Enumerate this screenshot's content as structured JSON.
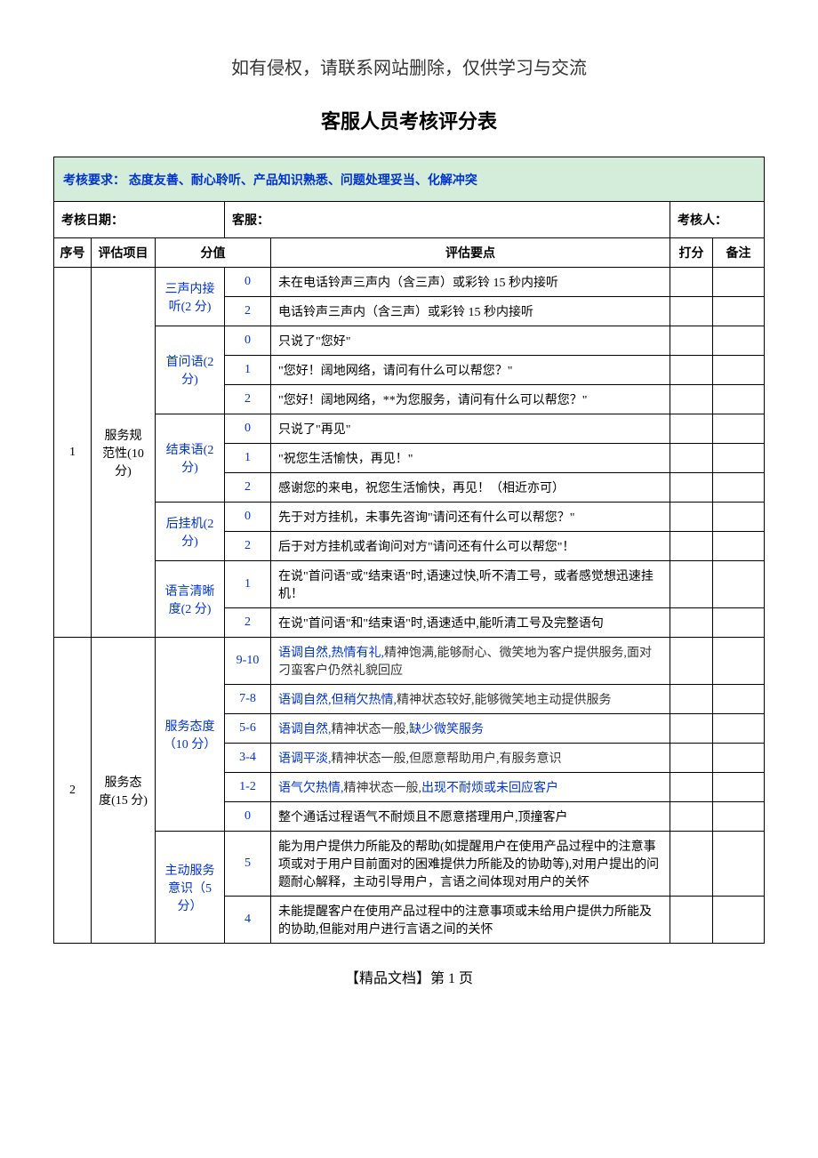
{
  "disclaimer": "如有侵权，请联系网站删除，仅供学习与交流",
  "title": "客服人员考核评分表",
  "requirements": {
    "label": "考核要求：",
    "text": "态度友善、耐心聆听、产品知识熟悉、问题处理妥当、化解冲突"
  },
  "info": {
    "date_label": "考核日期：",
    "agent_label": "客服：",
    "assessor_label": "考核人："
  },
  "columns": {
    "seq": "序号",
    "project": "评估项目",
    "score_label": "分值",
    "desc": "评估要点",
    "grade": "打分",
    "remark": "备注"
  },
  "section1": {
    "seq": "1",
    "project": "服务规范性(10 分)",
    "items": [
      {
        "name": "三声内接听(2 分)",
        "rows": [
          {
            "score": "0",
            "desc": "未在电话铃声三声内（含三声）或彩铃 15 秒内接听"
          },
          {
            "score": "2",
            "desc": "电话铃声三声内（含三声）或彩铃 15 秒内接听"
          }
        ]
      },
      {
        "name": "首问语(2 分)",
        "rows": [
          {
            "score": "0",
            "desc": "只说了\"您好\""
          },
          {
            "score": "1",
            "desc": "\"您好！阔地网络，请问有什么可以帮您？\""
          },
          {
            "score": "2",
            "desc": "\"您好！阔地网络，**为您服务，请问有什么可以帮您？\""
          }
        ]
      },
      {
        "name": "结束语(2 分)",
        "rows": [
          {
            "score": "0",
            "desc": "只说了\"再见\""
          },
          {
            "score": "1",
            "desc": "\"祝您生活愉快，再见！\""
          },
          {
            "score": "2",
            "desc": "感谢您的来电，祝您生活愉快，再见！（相近亦可）"
          }
        ]
      },
      {
        "name": "后挂机(2 分)",
        "rows": [
          {
            "score": "0",
            "desc": "先于对方挂机，未事先咨询\"请问还有什么可以帮您？\""
          },
          {
            "score": "2",
            "desc": "后于对方挂机或者询问对方\"请问还有什么可以帮您\"！"
          }
        ]
      },
      {
        "name": "语言清晰度(2 分)",
        "rows": [
          {
            "score": "1",
            "desc": "在说\"首问语\"或\"结束语\"时,语速过快,听不清工号，或者感觉想迅速挂机！"
          },
          {
            "score": "2",
            "desc": "在说\"首问语\"和\"结束语\"时,语速适中,能听清工号及完整语句"
          }
        ]
      }
    ]
  },
  "section2": {
    "seq": "2",
    "project": "服务态度(15 分)",
    "items": [
      {
        "name": "服务态度（10 分）",
        "rows": [
          {
            "score": "9-10",
            "parts": [
              "语调自然,热情有礼,",
              "精神饱满,能够耐心、微笑地为客户提供服务,面对刁蛮客户仍然礼貌回应"
            ]
          },
          {
            "score": "7-8",
            "parts": [
              "语调自然,但稍欠热情,",
              "精神状态较好,能够微笑地主动提供服务"
            ]
          },
          {
            "score": "5-6",
            "parts": [
              "语调自然,",
              "精神状态一般,",
              "缺少微笑服务"
            ]
          },
          {
            "score": "3-4",
            "parts": [
              "语调平淡,",
              "精神状态一般,但愿意帮助用户,有服务意识"
            ]
          },
          {
            "score": "1-2",
            "parts": [
              "语气欠热情,",
              "精神状态一般,",
              "出现不耐烦或未回应客户"
            ]
          },
          {
            "score": "0",
            "parts": [
              "",
              "整个通话过程语气不耐烦且不愿意搭理用户,顶撞客户"
            ]
          }
        ]
      },
      {
        "name": "主动服务意识（5 分）",
        "rows": [
          {
            "score": "5",
            "desc": "能为用户提供力所能及的帮助(如提醒用户在使用产品过程中的注意事项或对于用户目前面对的困难提供力所能及的协助等),对用户提出的问题耐心解释，主动引导用户，言语之间体现对用户的关怀"
          },
          {
            "score": "4",
            "desc": "未能提醒客户在使用产品过程中的注意事项或未给用户提供力所能及的协助,但能对用户进行言语之间的关怀"
          }
        ]
      }
    ]
  },
  "footer": "【精品文档】第 1 页",
  "colors": {
    "requirements_bg": "#d4edda",
    "blue_text": "#0033cc",
    "border": "#000000",
    "bg": "#ffffff"
  }
}
